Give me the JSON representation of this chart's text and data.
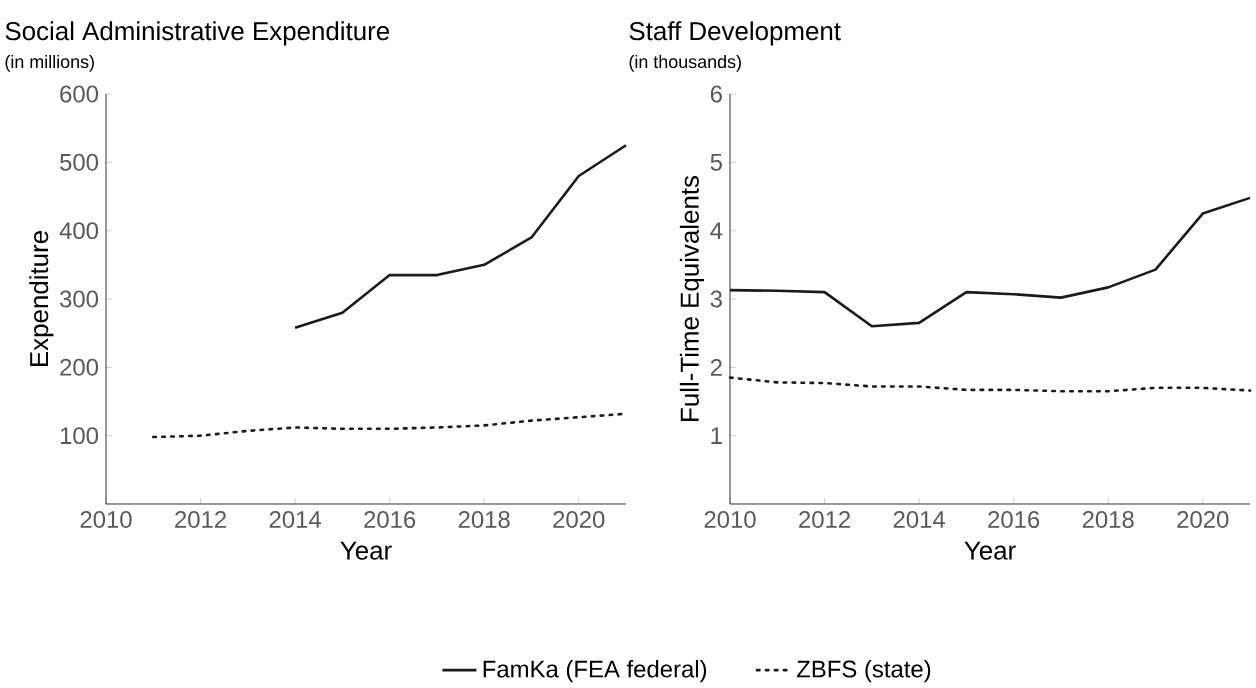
{
  "chart_data": [
    {
      "type": "line",
      "title": "Social Administrative Expenditure",
      "subtitle": "(in millions)",
      "xlabel": "Year",
      "ylabel": "Expenditure",
      "xlim": [
        2010,
        2021
      ],
      "xticks": [
        2010,
        2012,
        2014,
        2016,
        2018,
        2020
      ],
      "ylim": [
        0,
        600
      ],
      "yticks": [
        100,
        200,
        300,
        400,
        500,
        600
      ],
      "grid": false,
      "legend": "bottom",
      "series": [
        {
          "name": "FamKa (FEA federal)",
          "color": "#1a1a1a",
          "line_style": "solid",
          "x": [
            2014,
            2015,
            2016,
            2017,
            2018,
            2019,
            2020,
            2021
          ],
          "values": [
            258,
            280,
            335,
            335,
            350,
            390,
            480,
            525
          ]
        },
        {
          "name": "ZBFS (state)",
          "color": "#1a1a1a",
          "line_style": "dotted",
          "x": [
            2011,
            2012,
            2013,
            2014,
            2015,
            2016,
            2017,
            2018,
            2019,
            2020,
            2021
          ],
          "values": [
            98,
            100,
            107,
            112,
            110,
            110,
            112,
            115,
            122,
            127,
            132
          ]
        }
      ]
    },
    {
      "type": "line",
      "title": "Staff Development",
      "subtitle": "(in thousands)",
      "xlabel": "Year",
      "ylabel": "Full-Time Equivalents",
      "xlim": [
        2010,
        2021
      ],
      "xticks": [
        2010,
        2012,
        2014,
        2016,
        2018,
        2020
      ],
      "ylim": [
        0,
        6
      ],
      "yticks": [
        1,
        2,
        3,
        4,
        5,
        6
      ],
      "grid": false,
      "series": [
        {
          "color": "#1a1a1a",
          "line_style": "solid",
          "x": [
            2010,
            2011,
            2012,
            2013,
            2014,
            2015,
            2016,
            2017,
            2018,
            2019,
            2020,
            2021
          ],
          "values": [
            3.13,
            3.12,
            3.1,
            2.6,
            2.65,
            3.1,
            3.07,
            3.02,
            3.17,
            3.43,
            4.25,
            4.48
          ]
        },
        {
          "color": "#1a1a1a",
          "line_style": "dotted",
          "x": [
            2010,
            2011,
            2012,
            2013,
            2014,
            2015,
            2016,
            2017,
            2018,
            2019,
            2020,
            2021
          ],
          "values": [
            1.85,
            1.78,
            1.77,
            1.72,
            1.72,
            1.67,
            1.67,
            1.65,
            1.65,
            1.7,
            1.7,
            1.66
          ]
        }
      ]
    }
  ]
}
